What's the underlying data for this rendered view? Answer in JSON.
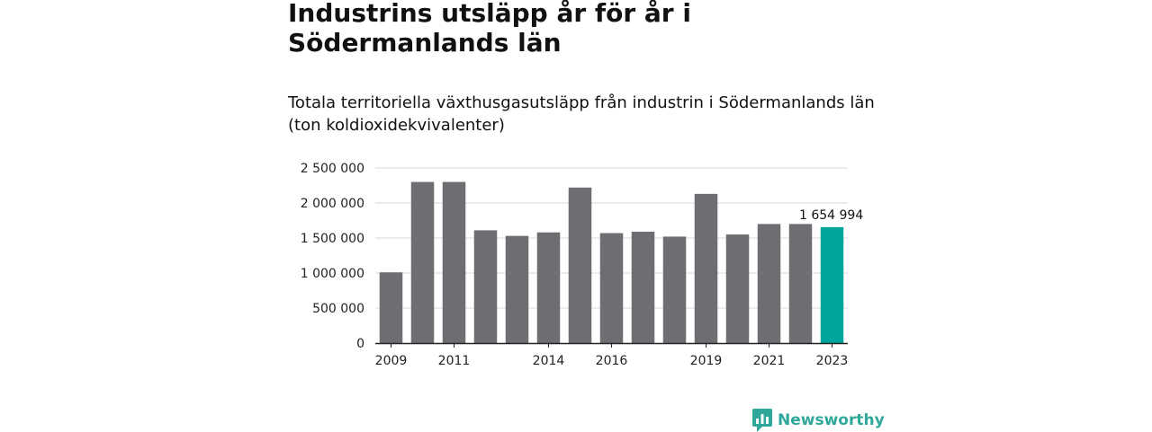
{
  "header": {
    "title": "Industrins utsläpp år för år i Södermanlands län",
    "subtitle": "Totala territoriella växthusgasutsläpp från industrin i Södermanlands län (ton koldioxidekvivalenter)"
  },
  "brand": {
    "name": "Newsworthy",
    "icon": "newsworthy-logo-icon",
    "color": "#2fa79a"
  },
  "chart_data": {
    "type": "bar",
    "categories": [
      "2009",
      "2010",
      "2011",
      "2012",
      "2013",
      "2014",
      "2015",
      "2016",
      "2017",
      "2018",
      "2019",
      "2020",
      "2021",
      "2022",
      "2023"
    ],
    "values": [
      1010000,
      2300000,
      2300000,
      1610000,
      1530000,
      1580000,
      2220000,
      1570000,
      1590000,
      1520000,
      2130000,
      1550000,
      1700000,
      1700000,
      1654994
    ],
    "x_tick_labels": [
      "2009",
      "2011",
      "2014",
      "2016",
      "2019",
      "2021",
      "2023"
    ],
    "y_ticks": [
      0,
      500000,
      1000000,
      1500000,
      2000000,
      2500000
    ],
    "y_tick_labels": [
      "0",
      "500 000",
      "1 000 000",
      "1 500 000",
      "2 000 000",
      "2 500 000"
    ],
    "ylim": [
      0,
      2500000
    ],
    "xlabel": "",
    "ylabel": "",
    "highlight": {
      "category": "2023",
      "label": "1 654 994"
    },
    "colors": {
      "bar": "#6e6d72",
      "highlight": "#00a69c",
      "grid": "#d9d9d9",
      "axis": "#222222"
    },
    "grid": true
  }
}
